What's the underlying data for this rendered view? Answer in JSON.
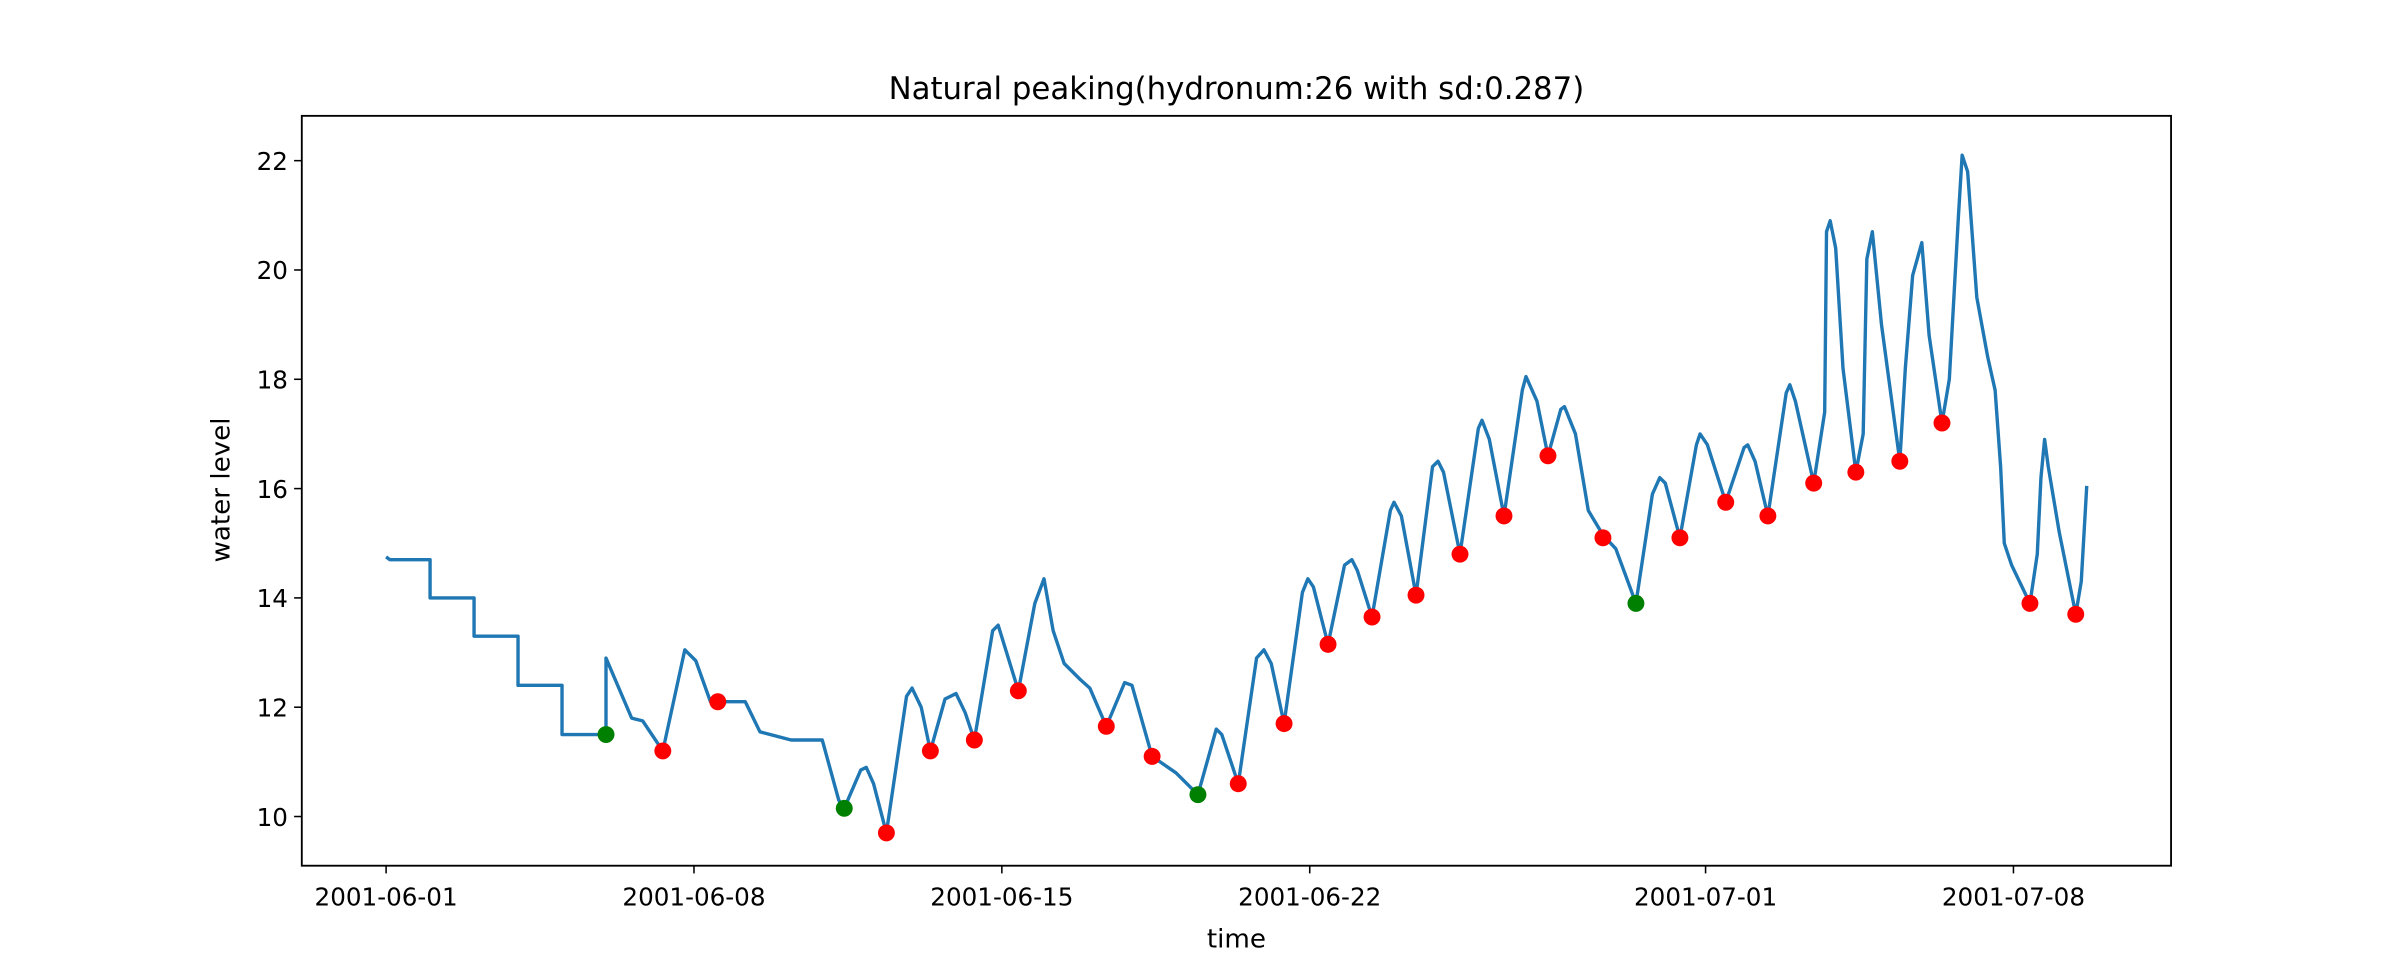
{
  "chart_data": {
    "type": "line",
    "title": "Natural peaking(hydronum:26 with sd:0.287)",
    "xlabel": "time",
    "ylabel": "water level",
    "xlim": [
      "2001-05-30 02:00",
      "2001-07-11 14:00"
    ],
    "xticks": [
      "2001-06-01",
      "2001-06-08",
      "2001-06-15",
      "2001-06-22",
      "2001-07-01",
      "2001-07-08"
    ],
    "ylim": [
      9.1,
      22.82
    ],
    "yticks": [
      10,
      12,
      14,
      16,
      18,
      20,
      22
    ],
    "series": [
      {
        "type": "line",
        "color": "#1f77b4",
        "x": [
          "2001-06-01 00:00",
          "2001-06-01 02:00",
          "2001-06-02 00:00",
          "2001-06-02 00:00",
          "2001-06-03 00:00",
          "2001-06-03 00:00",
          "2001-06-04 00:00",
          "2001-06-04 00:00",
          "2001-06-05 00:00",
          "2001-06-05 00:00",
          "2001-06-06 00:00",
          "2001-06-06 00:00",
          "2001-06-06 14:00",
          "2001-06-06 20:00",
          "2001-06-07 07:00",
          "2001-06-07 19:00",
          "2001-06-08 01:00",
          "2001-06-08 09:00",
          "2001-06-09 04:00",
          "2001-06-09 12:00",
          "2001-06-10 05:00",
          "2001-06-10 22:00",
          "2001-06-11 07:00",
          "2001-06-11 10:00",
          "2001-06-11 19:00",
          "2001-06-11 22:00",
          "2001-06-12 02:00",
          "2001-06-12 09:00",
          "2001-06-12 20:00",
          "2001-06-12 23:00",
          "2001-06-13 04:00",
          "2001-06-13 09:00",
          "2001-06-13 17:00",
          "2001-06-13 23:00",
          "2001-06-14 04:00",
          "2001-06-14 09:00",
          "2001-06-14 19:00",
          "2001-06-14 22:00",
          "2001-06-15 09:00",
          "2001-06-15 18:00",
          "2001-06-15 23:00",
          "2001-06-16 04:00",
          "2001-06-16 10:00",
          "2001-06-16 19:00",
          "2001-06-17 00:00",
          "2001-06-17 09:00",
          "2001-06-17 19:00",
          "2001-06-17 23:00",
          "2001-06-18 10:00",
          "2001-06-18 23:00",
          "2001-06-19 11:00",
          "2001-06-19 21:00",
          "2001-06-20 00:00",
          "2001-06-20 09:00",
          "2001-06-20 19:00",
          "2001-06-20 23:00",
          "2001-06-21 03:00",
          "2001-06-21 10:00",
          "2001-06-21 20:00",
          "2001-06-21 23:00",
          "2001-06-22 02:00",
          "2001-06-22 10:00",
          "2001-06-22 19:00",
          "2001-06-22 23:00",
          "2001-06-23 02:00",
          "2001-06-23 10:00",
          "2001-06-23 20:00",
          "2001-06-23 22:00",
          "2001-06-24 02:00",
          "2001-06-24 10:00",
          "2001-06-24 19:00",
          "2001-06-24 22:00",
          "2001-06-25 01:00",
          "2001-06-25 10:00",
          "2001-06-25 20:00",
          "2001-06-25 22:00",
          "2001-06-26 02:00",
          "2001-06-26 10:00",
          "2001-06-26 20:00",
          "2001-06-26 22:00",
          "2001-06-27 04:00",
          "2001-06-27 10:00",
          "2001-06-27 17:00",
          "2001-06-27 19:00",
          "2001-06-28 01:00",
          "2001-06-28 08:00",
          "2001-06-28 16:00",
          "2001-06-28 23:00",
          "2001-06-29 10:00",
          "2001-06-29 19:00",
          "2001-06-29 23:00",
          "2001-06-30 02:00",
          "2001-06-30 10:00",
          "2001-06-30 19:00",
          "2001-06-30 21:00",
          "2001-07-01 01:00",
          "2001-07-01 11:00",
          "2001-07-01 21:00",
          "2001-07-01 23:00",
          "2001-07-02 03:00",
          "2001-07-02 10:00",
          "2001-07-02 20:00",
          "2001-07-02 22:00",
          "2001-07-03 01:00",
          "2001-07-03 11:00",
          "2001-07-03 17:00",
          "2001-07-03 18:00",
          "2001-07-03 20:00",
          "2001-07-03 23:00",
          "2001-07-04 03:00",
          "2001-07-04 10:00",
          "2001-07-04 14:00",
          "2001-07-04 16:00",
          "2001-07-04 19:00",
          "2001-07-05 00:00",
          "2001-07-05 10:00",
          "2001-07-05 13:00",
          "2001-07-05 17:00",
          "2001-07-05 22:00",
          "2001-07-06 02:00",
          "2001-07-06 09:00",
          "2001-07-06 13:00",
          "2001-07-06 18:00",
          "2001-07-06 20:00",
          "2001-07-06 23:00",
          "2001-07-07 04:00",
          "2001-07-07 10:00",
          "2001-07-07 14:00",
          "2001-07-07 17:00",
          "2001-07-07 19:00",
          "2001-07-07 23:00",
          "2001-07-08 09:00",
          "2001-07-08 13:00",
          "2001-07-08 15:00",
          "2001-07-08 17:00",
          "2001-07-08 19:00",
          "2001-07-09 01:00",
          "2001-07-09 10:00",
          "2001-07-09 13:00",
          "2001-07-09 16:00"
        ],
        "values": [
          14.75,
          14.7,
          14.7,
          14.0,
          14.0,
          13.3,
          13.3,
          12.4,
          12.4,
          11.5,
          11.5,
          12.9,
          11.8,
          11.75,
          11.2,
          13.05,
          12.85,
          12.1,
          12.1,
          11.55,
          11.4,
          11.4,
          10.3,
          10.15,
          10.85,
          10.9,
          10.6,
          9.7,
          12.2,
          12.35,
          12.0,
          11.2,
          12.15,
          12.25,
          11.9,
          11.4,
          13.4,
          13.5,
          12.3,
          13.9,
          14.35,
          13.4,
          12.8,
          12.5,
          12.35,
          11.65,
          12.45,
          12.4,
          11.1,
          10.8,
          10.4,
          11.6,
          11.5,
          10.6,
          12.9,
          13.05,
          12.8,
          11.7,
          14.1,
          14.35,
          14.2,
          13.15,
          14.6,
          14.7,
          14.5,
          13.65,
          15.6,
          15.75,
          15.5,
          14.05,
          16.4,
          16.5,
          16.3,
          14.8,
          17.1,
          17.25,
          16.9,
          15.5,
          17.8,
          18.05,
          17.6,
          16.6,
          17.45,
          17.5,
          17.0,
          15.6,
          15.15,
          14.9,
          13.9,
          15.9,
          16.2,
          16.1,
          15.1,
          16.8,
          17.0,
          16.8,
          15.75,
          16.75,
          16.8,
          16.5,
          15.5,
          17.75,
          17.9,
          17.6,
          16.1,
          17.4,
          20.7,
          20.9,
          20.4,
          18.2,
          16.3,
          17.0,
          20.2,
          20.7,
          19.0,
          16.5,
          18.2,
          19.9,
          20.5,
          18.8,
          17.2,
          18.0,
          21.0,
          22.1,
          21.8,
          19.5,
          18.4,
          17.8,
          16.4,
          15.0,
          14.6,
          13.9,
          14.8,
          16.2,
          16.9,
          16.4,
          15.2,
          13.7,
          14.3,
          16.05
        ]
      },
      {
        "type": "scatter",
        "color": "red",
        "x": [
          "2001-06-07 07:00",
          "2001-06-08 13:00",
          "2001-06-12 09:00",
          "2001-06-13 09:00",
          "2001-06-14 09:00",
          "2001-06-15 09:00",
          "2001-06-17 09:00",
          "2001-06-18 10:00",
          "2001-06-20 09:00",
          "2001-06-21 10:00",
          "2001-06-22 10:00",
          "2001-06-23 10:00",
          "2001-06-24 10:00",
          "2001-06-25 10:00",
          "2001-06-26 10:00",
          "2001-06-27 10:00",
          "2001-06-28 16:00",
          "2001-06-30 10:00",
          "2001-07-01 11:00",
          "2001-07-02 10:00",
          "2001-07-03 11:00",
          "2001-07-04 10:00",
          "2001-07-05 10:00",
          "2001-07-06 09:00",
          "2001-07-08 09:00",
          "2001-07-09 10:00"
        ],
        "values": [
          11.2,
          12.1,
          9.7,
          11.2,
          11.4,
          12.3,
          11.65,
          11.1,
          10.6,
          11.7,
          13.15,
          13.65,
          14.05,
          14.8,
          15.5,
          16.6,
          15.1,
          15.1,
          15.75,
          15.5,
          16.1,
          16.3,
          16.5,
          17.2,
          13.9,
          13.7
        ]
      },
      {
        "type": "scatter",
        "color": "green",
        "x": [
          "2001-06-06 00:00",
          "2001-06-11 10:00",
          "2001-06-19 11:00",
          "2001-06-29 10:00"
        ],
        "values": [
          11.5,
          10.15,
          10.4,
          13.9
        ]
      }
    ]
  }
}
